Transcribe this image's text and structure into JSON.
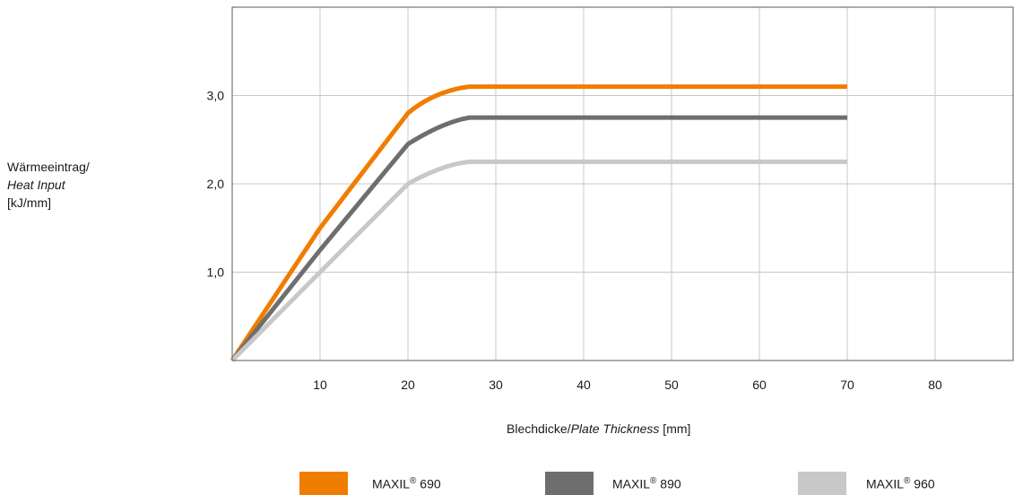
{
  "chart_data": {
    "type": "line",
    "ylabel": {
      "line1": "Wärmeeintrag/",
      "line2": "Heat Input",
      "line3": "[kJ/mm]"
    },
    "xlabel": {
      "de": "Blechdicke",
      "sep": "/",
      "en": "Plate Thickness",
      "unit": " [mm]"
    },
    "xlim": [
      0,
      90
    ],
    "ylim": [
      0,
      4.0
    ],
    "x_ticks": [
      10,
      20,
      30,
      40,
      50,
      60,
      70,
      80
    ],
    "x_tick_labels": [
      "10",
      "20",
      "30",
      "40",
      "50",
      "60",
      "70",
      "80"
    ],
    "y_ticks": [
      1,
      2,
      3
    ],
    "y_tick_labels": [
      "1,0",
      "2,0",
      "3,0"
    ],
    "grid": true,
    "legend_position": "bottom",
    "series": [
      {
        "name": "MAXIL® 690",
        "brand": "MAXIL",
        "mark": "®",
        "grade": " 690",
        "color": "#f07d00",
        "points": [
          [
            0,
            0
          ],
          [
            10,
            1.5
          ],
          [
            20,
            2.8
          ],
          [
            23,
            3.05
          ],
          [
            27,
            3.1
          ],
          [
            70,
            3.1
          ]
        ]
      },
      {
        "name": "MAXIL® 890",
        "brand": "MAXIL",
        "mark": "®",
        "grade": " 890",
        "color": "#6e6e6e",
        "points": [
          [
            0,
            0
          ],
          [
            10,
            1.25
          ],
          [
            20,
            2.45
          ],
          [
            24,
            2.7
          ],
          [
            27,
            2.75
          ],
          [
            70,
            2.75
          ]
        ]
      },
      {
        "name": "MAXIL® 960",
        "brand": "MAXIL",
        "mark": "®",
        "grade": " 960",
        "color": "#c8c8c8",
        "points": [
          [
            0,
            0
          ],
          [
            10,
            1.0
          ],
          [
            20,
            2.0
          ],
          [
            24,
            2.22
          ],
          [
            27,
            2.25
          ],
          [
            70,
            2.25
          ]
        ]
      }
    ]
  }
}
